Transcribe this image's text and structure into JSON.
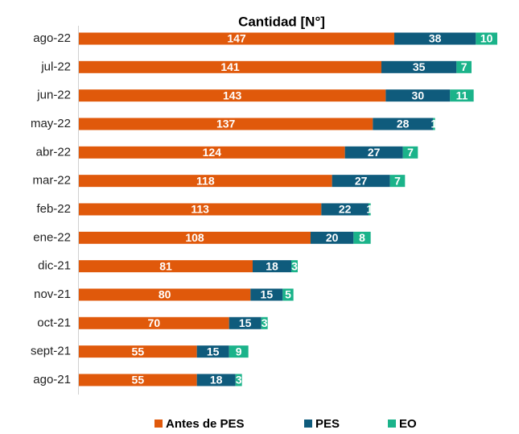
{
  "chart_data": {
    "type": "stacked-bar-horizontal",
    "title": "Cantidad [N°]",
    "categories": [
      "ago-22",
      "jul-22",
      "jun-22",
      "may-22",
      "abr-22",
      "mar-22",
      "feb-22",
      "ene-22",
      "dic-21",
      "nov-21",
      "oct-21",
      "sept-21",
      "ago-21"
    ],
    "series": [
      {
        "name": "Antes de PES",
        "color": "#e0590b",
        "values": [
          147,
          141,
          143,
          137,
          124,
          118,
          113,
          108,
          81,
          80,
          70,
          55,
          55
        ]
      },
      {
        "name": "PES",
        "color": "#0f5b7c",
        "values": [
          38,
          35,
          30,
          28,
          27,
          27,
          22,
          20,
          18,
          15,
          15,
          15,
          18
        ]
      },
      {
        "name": "EO",
        "color": "#1bb38a",
        "values": [
          10,
          7,
          11,
          1,
          7,
          7,
          1,
          8,
          3,
          5,
          3,
          9,
          3
        ]
      }
    ],
    "legend": "bottom"
  }
}
